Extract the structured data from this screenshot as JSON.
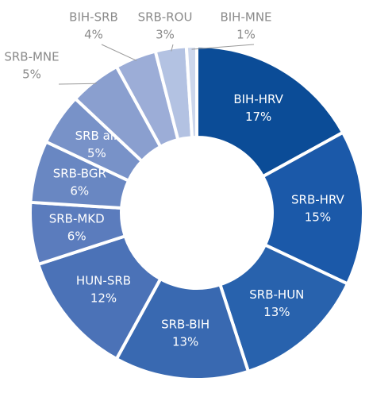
{
  "chart_data": {
    "type": "pie",
    "categories": [
      "BIH-HRV",
      "SRB-HRV",
      "SRB-HUN",
      "SRB-BIH",
      "HUN-SRB",
      "SRB-MKD",
      "SRB-BGR",
      "SRB air",
      "SRB-MNE",
      "BIH-SRB",
      "SRB-ROU",
      "BIH-MNE"
    ],
    "values": [
      17,
      15,
      13,
      13,
      12,
      6,
      6,
      5,
      5,
      4,
      3,
      1
    ],
    "value_labels": [
      "17%",
      "15%",
      "13%",
      "13%",
      "12%",
      "6%",
      "6%",
      "5%",
      "5%",
      "4%",
      "3%",
      "1%"
    ],
    "colors": [
      "#0b4c97",
      "#1b59a9",
      "#2862ad",
      "#3969b1",
      "#4b72b7",
      "#5b7cbd",
      "#6987c2",
      "#7892c8",
      "#8a9fcf",
      "#9cadd7",
      "#b3c2e2",
      "#cdd7ec"
    ]
  }
}
